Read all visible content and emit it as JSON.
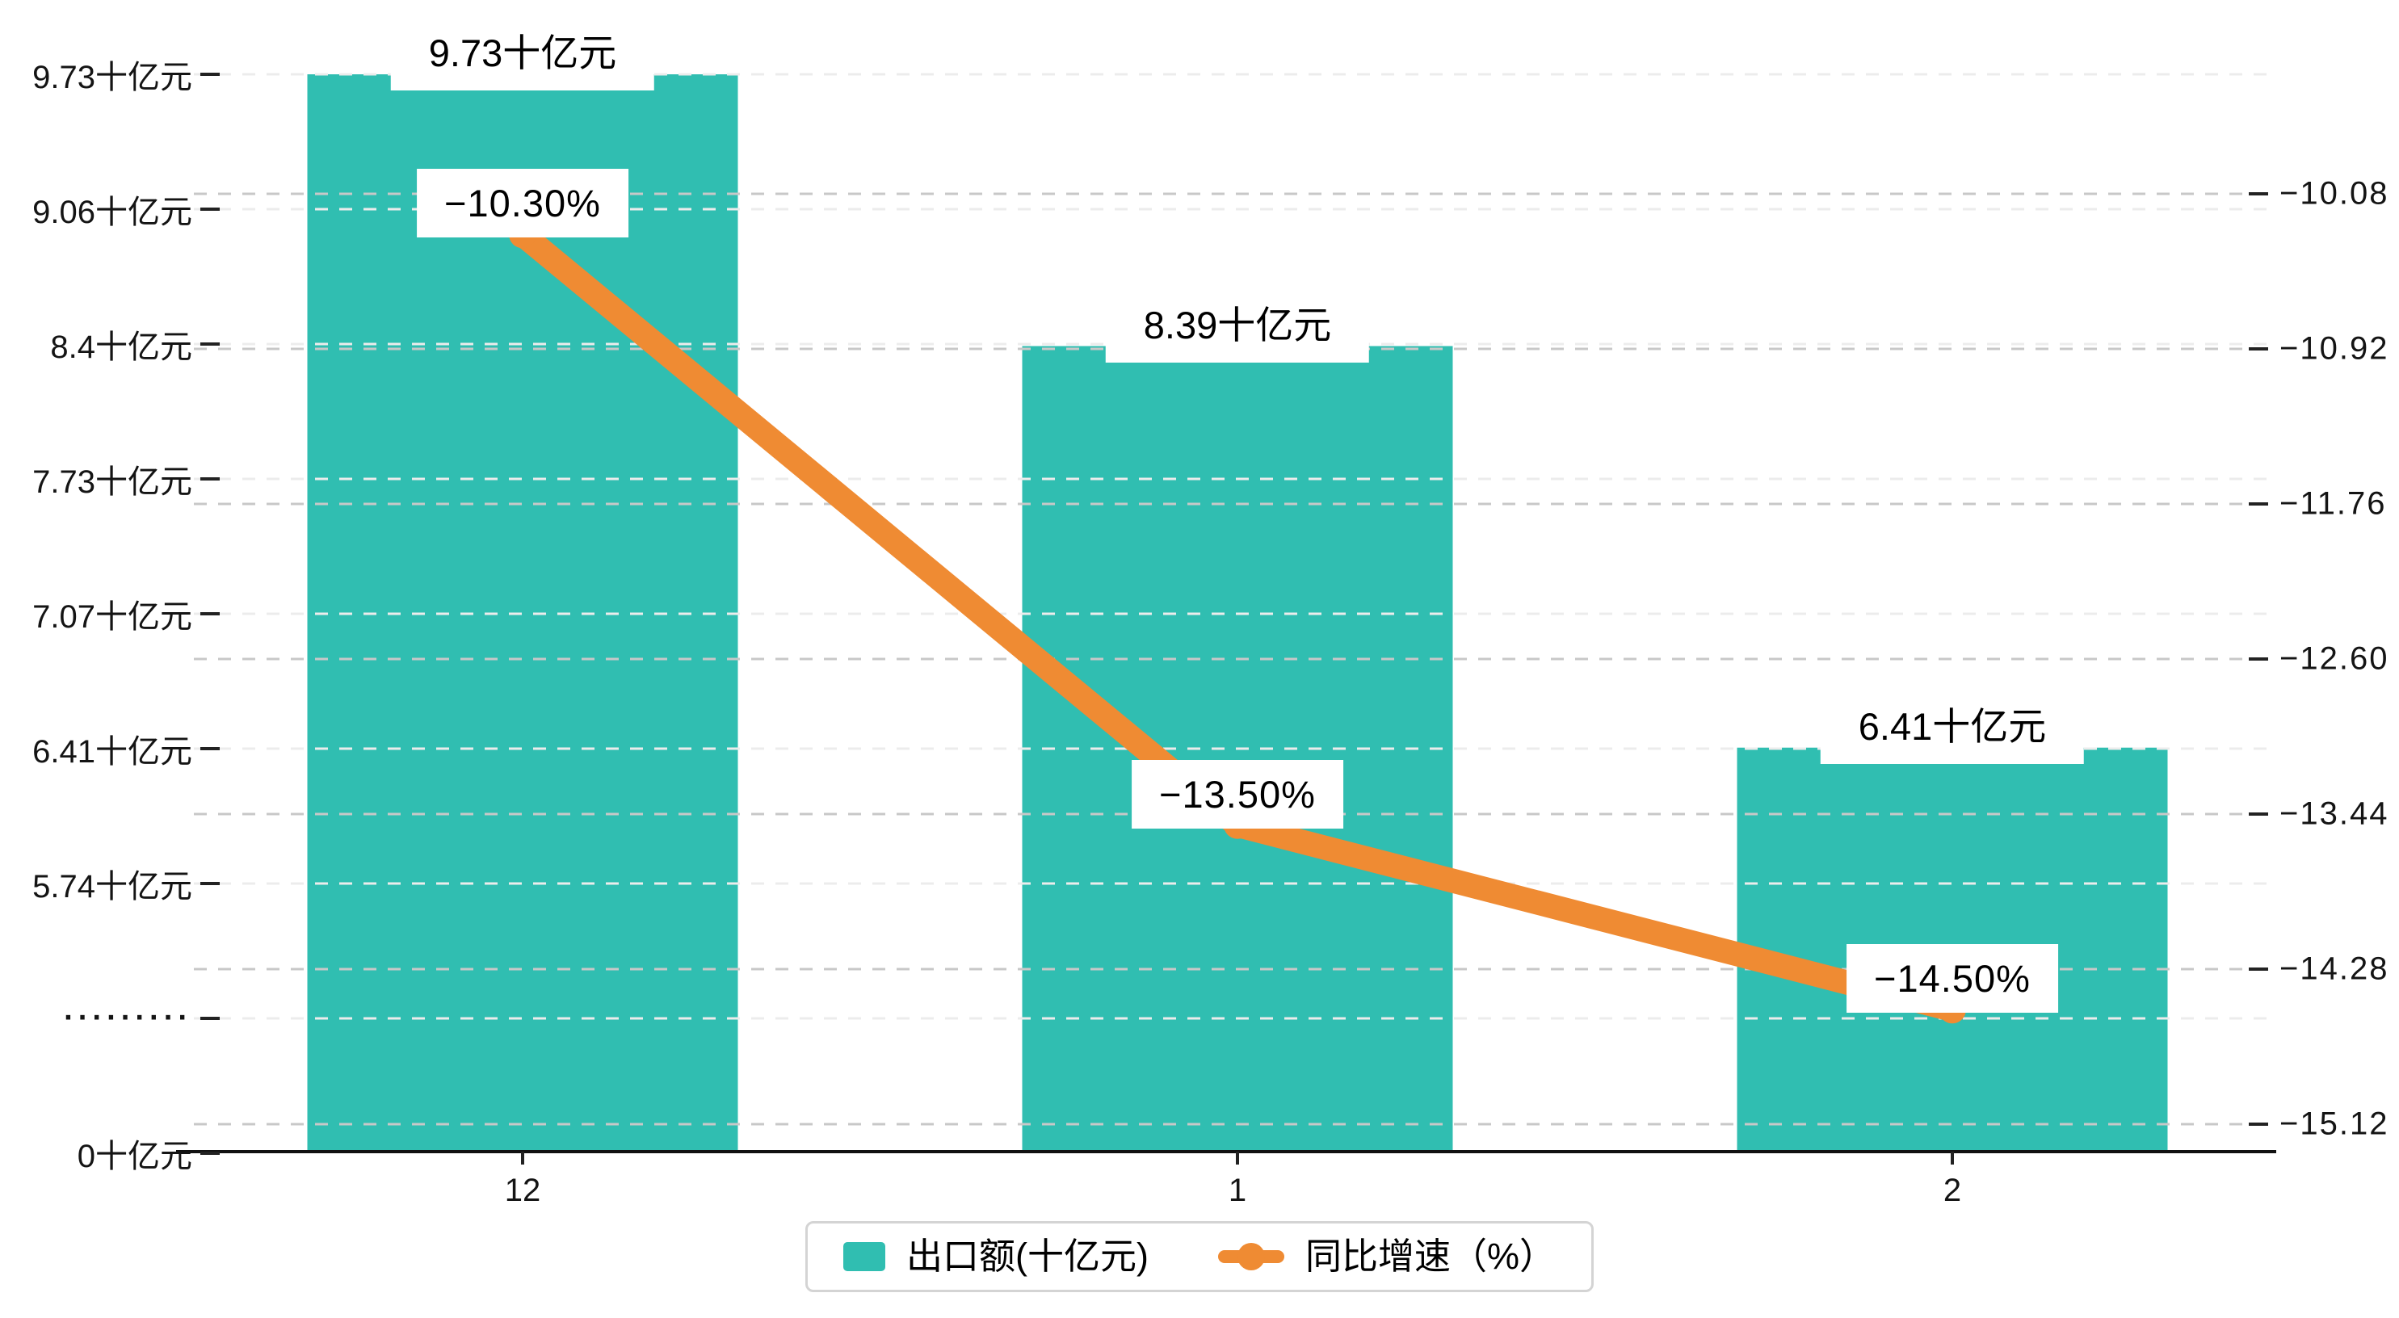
{
  "chart_data": {
    "type": "bar+line dual-axis combo, left value axis broken below 5.74",
    "categories": [
      "12",
      "1",
      "2"
    ],
    "series": [
      {
        "name": "出口额(十亿元)",
        "type": "bar",
        "values": [
          9.73,
          8.39,
          6.41
        ],
        "labels": [
          "9.73十亿元",
          "8.39十亿元",
          "6.41十亿元"
        ],
        "color": "#30beb1",
        "axis": "left"
      },
      {
        "name": "同比增速（%）",
        "type": "line",
        "values": [
          -10.3,
          -13.5,
          -14.5
        ],
        "labels": [
          "−10.30%",
          "−13.50%",
          "−14.50%"
        ],
        "color": "#ef8b33",
        "axis": "right"
      }
    ],
    "left_axis": {
      "tick_labels": [
        "9.73十亿元",
        "9.06十亿元",
        "8.4十亿元",
        "7.73十亿元",
        "7.07十亿元",
        "6.41十亿元",
        "5.74十亿元",
        "·········",
        "0十亿元"
      ],
      "tick_values": [
        9.73,
        9.06,
        8.4,
        7.73,
        7.07,
        6.41,
        5.74,
        null,
        0
      ],
      "broken": true,
      "break_label_index": 7,
      "unit": "十亿元"
    },
    "right_axis": {
      "tick_labels": [
        "−10.08",
        "−10.92",
        "−11.76",
        "−12.60",
        "−13.44",
        "−14.28",
        "−15.12"
      ],
      "tick_values": [
        -10.08,
        -10.92,
        -11.76,
        -12.6,
        -13.44,
        -14.28,
        -15.12
      ],
      "max": -10.08,
      "min": -15.12,
      "step": -0.84
    },
    "x_axis": {
      "tick_labels": [
        "12",
        "1",
        "2"
      ]
    },
    "grid": {
      "horizontal_dashed": true
    },
    "legend": {
      "position": "bottom-center",
      "boxed": true
    },
    "colors": {
      "bar": "#30beb1",
      "line": "#ef8b33",
      "grid_left": "#ececec",
      "grid_right": "#c8c8c8",
      "axis_line": "#111111",
      "text": "#141414",
      "label_bg": "#ffffff",
      "legend_border": "#d4d4d4"
    }
  }
}
